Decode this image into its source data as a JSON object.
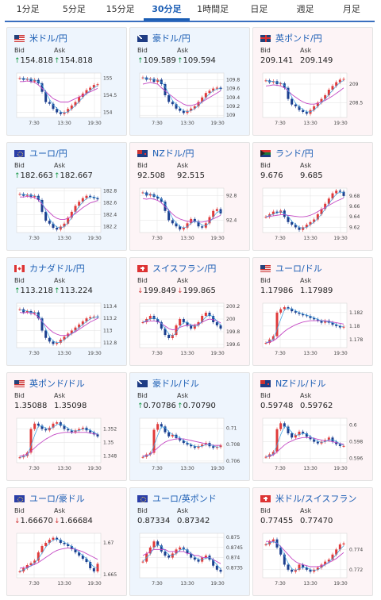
{
  "tabs": [
    "1分足",
    "5分足",
    "15分足",
    "30分足",
    "1時間足",
    "日足",
    "週足",
    "月足"
  ],
  "active_tab": 3,
  "labels": {
    "bid": "Bid",
    "ask": "Ask"
  },
  "time_labels": [
    "7:30",
    "13:30",
    "19:30"
  ],
  "colors": {
    "up": "#e03a3a",
    "down": "#1c3f8f",
    "ma": "#c448c4",
    "ma_light": "#d99ee0",
    "grid": "#e2e2e2",
    "bg_blue": "#eef5fd",
    "bg_pink": "#fdf4f6"
  },
  "cards": [
    {
      "pair": "米ドル/円",
      "flag": "us-flag-icon",
      "bid": "154.818",
      "ask": "154.818",
      "bid_dir": "up",
      "ask_dir": "up",
      "bg": "blue",
      "y_ticks": [
        "155",
        "154.5",
        "154"
      ],
      "series": [
        155.0,
        154.95,
        154.98,
        154.9,
        154.95,
        154.85,
        154.6,
        154.3,
        154.25,
        154.1,
        154.0,
        153.95,
        154.0,
        154.1,
        154.2,
        154.3,
        154.45,
        154.55,
        154.65,
        154.72,
        154.8,
        154.82
      ],
      "ma": [
        154.9,
        154.9,
        154.92,
        154.9,
        154.88,
        154.8,
        154.7,
        154.6,
        154.5,
        154.4,
        154.35,
        154.3,
        154.3,
        154.3,
        154.35,
        154.4,
        154.45,
        154.5,
        154.55,
        154.6,
        154.65,
        154.7
      ],
      "ylim": [
        153.85,
        155.15
      ]
    },
    {
      "pair": "豪ドル/円",
      "flag": "au-flag-icon",
      "bid": "109.589",
      "ask": "109.594",
      "bid_dir": "up",
      "ask_dir": "up",
      "bg": "blue",
      "y_ticks": [
        "109.8",
        "109.6",
        "109.4",
        "109.2",
        "109"
      ],
      "series": [
        109.85,
        109.8,
        109.82,
        109.75,
        109.8,
        109.7,
        109.45,
        109.3,
        109.25,
        109.15,
        109.1,
        109.05,
        109.1,
        109.15,
        109.2,
        109.3,
        109.4,
        109.5,
        109.55,
        109.6,
        109.62,
        109.59
      ],
      "ma": [
        109.7,
        109.72,
        109.74,
        109.72,
        109.7,
        109.62,
        109.55,
        109.48,
        109.42,
        109.35,
        109.3,
        109.25,
        109.22,
        109.22,
        109.24,
        109.27,
        109.3,
        109.35,
        109.4,
        109.45,
        109.5,
        109.55
      ],
      "ylim": [
        108.95,
        109.95
      ]
    },
    {
      "pair": "英ポンド/円",
      "flag": "gb-flag-icon",
      "bid": "209.141",
      "ask": "209.149",
      "bid_dir": "none",
      "ask_dir": "none",
      "bg": "pink",
      "y_ticks": [
        "209",
        "208.5"
      ],
      "series": [
        209.1,
        209.05,
        209.08,
        209.0,
        209.02,
        208.9,
        208.6,
        208.45,
        208.4,
        208.3,
        208.25,
        208.2,
        208.3,
        208.4,
        208.5,
        208.6,
        208.7,
        208.85,
        208.95,
        209.05,
        209.12,
        209.14
      ],
      "ma": [
        208.95,
        208.96,
        208.98,
        208.97,
        208.95,
        208.9,
        208.82,
        208.72,
        208.65,
        208.58,
        208.52,
        208.48,
        208.46,
        208.46,
        208.48,
        208.52,
        208.56,
        208.62,
        208.68,
        208.75,
        208.82,
        208.9
      ],
      "ylim": [
        208.1,
        209.3
      ]
    },
    {
      "pair": "ユーロ/円",
      "flag": "eu-flag-icon",
      "bid": "182.663",
      "ask": "182.667",
      "bid_dir": "up",
      "ask_dir": "up",
      "bg": "blue",
      "y_ticks": [
        "182.8",
        "182.6",
        "182.4",
        "182.2"
      ],
      "series": [
        182.75,
        182.72,
        182.74,
        182.7,
        182.72,
        182.65,
        182.45,
        182.3,
        182.25,
        182.18,
        182.15,
        182.2,
        182.25,
        182.35,
        182.45,
        182.55,
        182.62,
        182.68,
        182.72,
        182.7,
        182.68,
        182.66
      ],
      "ma": [
        182.7,
        182.7,
        182.71,
        182.7,
        182.69,
        182.65,
        182.58,
        182.5,
        182.44,
        182.38,
        182.34,
        182.32,
        182.32,
        182.34,
        182.38,
        182.42,
        182.47,
        182.52,
        182.56,
        182.6,
        182.62,
        182.64
      ],
      "ylim": [
        182.1,
        182.85
      ]
    },
    {
      "pair": "NZドル/円",
      "flag": "nz-flag-icon",
      "bid": "92.508",
      "ask": "92.515",
      "bid_dir": "none",
      "ask_dir": "none",
      "bg": "pink",
      "y_ticks": [
        "92.8",
        "92.4"
      ],
      "series": [
        92.85,
        92.8,
        92.82,
        92.78,
        92.75,
        92.7,
        92.55,
        92.4,
        92.35,
        92.3,
        92.25,
        92.28,
        92.35,
        92.42,
        92.38,
        92.3,
        92.28,
        92.35,
        92.45,
        92.55,
        92.58,
        92.51
      ],
      "ma": [
        92.75,
        92.74,
        92.75,
        92.74,
        92.72,
        92.68,
        92.62,
        92.56,
        92.5,
        92.45,
        92.42,
        92.4,
        92.38,
        92.38,
        92.38,
        92.37,
        92.37,
        92.38,
        92.4,
        92.42,
        92.45,
        92.48
      ],
      "ylim": [
        92.2,
        92.92
      ]
    },
    {
      "pair": "ランド/円",
      "flag": "za-flag-icon",
      "bid": "9.676",
      "ask": "9.685",
      "bid_dir": "none",
      "ask_dir": "none",
      "bg": "pink",
      "y_ticks": [
        "9.68",
        "9.66",
        "9.64",
        "9.62"
      ],
      "series": [
        9.64,
        9.645,
        9.65,
        9.648,
        9.652,
        9.64,
        9.63,
        9.625,
        9.62,
        9.615,
        9.62,
        9.625,
        9.63,
        9.635,
        9.645,
        9.655,
        9.665,
        9.675,
        9.685,
        9.69,
        9.688,
        9.68
      ],
      "ma": [
        9.64,
        9.641,
        9.642,
        9.643,
        9.644,
        9.644,
        9.643,
        9.642,
        9.641,
        9.64,
        9.64,
        9.641,
        9.643,
        9.646,
        9.65,
        9.654,
        9.658,
        9.662,
        9.666,
        9.67,
        9.673,
        9.676
      ],
      "ylim": [
        9.61,
        9.695
      ]
    },
    {
      "pair": "カナダドル/円",
      "flag": "ca-flag-icon",
      "bid": "113.218",
      "ask": "113.224",
      "bid_dir": "up",
      "ask_dir": "up",
      "bg": "blue",
      "y_ticks": [
        "113.4",
        "113.2",
        "113",
        "112.8"
      ],
      "series": [
        113.35,
        113.3,
        113.32,
        113.28,
        113.3,
        113.2,
        113.0,
        112.88,
        112.82,
        112.78,
        112.8,
        112.85,
        112.9,
        112.95,
        113.0,
        113.05,
        113.1,
        113.15,
        113.2,
        113.22,
        113.23,
        113.22
      ],
      "ma": [
        113.3,
        113.29,
        113.3,
        113.29,
        113.27,
        113.22,
        113.15,
        113.08,
        113.02,
        112.97,
        112.94,
        112.92,
        112.92,
        112.93,
        112.95,
        112.98,
        113.02,
        113.06,
        113.1,
        113.14,
        113.17,
        113.2
      ],
      "ylim": [
        112.72,
        113.45
      ]
    },
    {
      "pair": "スイスフラン/円",
      "flag": "ch-flag-icon",
      "bid": "199.849",
      "ask": "199.865",
      "bid_dir": "down",
      "ask_dir": "down",
      "bg": "pink",
      "y_ticks": [
        "200.2",
        "200",
        "199.8",
        "199.6"
      ],
      "series": [
        199.95,
        200.0,
        200.05,
        200.0,
        199.95,
        199.85,
        199.75,
        199.7,
        199.75,
        199.9,
        200.0,
        199.95,
        199.9,
        199.85,
        199.9,
        199.95,
        200.05,
        200.1,
        200.05,
        199.95,
        199.9,
        199.85
      ],
      "ma": [
        199.95,
        199.96,
        199.97,
        199.97,
        199.96,
        199.93,
        199.89,
        199.85,
        199.83,
        199.84,
        199.87,
        199.89,
        199.9,
        199.9,
        199.91,
        199.92,
        199.95,
        199.98,
        200.0,
        199.99,
        199.97,
        199.94
      ],
      "ylim": [
        199.55,
        200.25
      ]
    },
    {
      "pair": "ユーロ/ドル",
      "flag": "us-flag-icon",
      "bid": "1.17986",
      "ask": "1.17989",
      "bid_dir": "none",
      "ask_dir": "none",
      "bg": "pink",
      "y_ticks": [
        "1.182",
        "1.18",
        "1.178"
      ],
      "series": [
        1.1775,
        1.178,
        1.1785,
        1.182,
        1.1825,
        1.1828,
        1.1826,
        1.1822,
        1.182,
        1.1818,
        1.1816,
        1.1815,
        1.1812,
        1.181,
        1.1808,
        1.1805,
        1.1808,
        1.1805,
        1.1802,
        1.18,
        1.1798,
        1.1799
      ],
      "ma": [
        1.1775,
        1.1776,
        1.1778,
        1.1782,
        1.1787,
        1.1792,
        1.1796,
        1.1799,
        1.1802,
        1.1804,
        1.1806,
        1.1807,
        1.1808,
        1.1808,
        1.1808,
        1.1808,
        1.1808,
        1.1807,
        1.1806,
        1.1805,
        1.1804,
        1.1803
      ],
      "ylim": [
        1.1768,
        1.1834
      ]
    },
    {
      "pair": "英ポンド/ドル",
      "flag": "us-flag-icon",
      "bid": "1.35088",
      "ask": "1.35098",
      "bid_dir": "none",
      "ask_dir": "none",
      "bg": "pink",
      "y_ticks": [
        "1.352",
        "1.35",
        "1.348"
      ],
      "series": [
        1.3478,
        1.348,
        1.3485,
        1.352,
        1.3528,
        1.3525,
        1.352,
        1.3518,
        1.3522,
        1.3528,
        1.353,
        1.3525,
        1.352,
        1.3518,
        1.3515,
        1.3518,
        1.352,
        1.3522,
        1.3518,
        1.3515,
        1.3512,
        1.3509
      ],
      "ma": [
        1.348,
        1.3481,
        1.3483,
        1.3487,
        1.3492,
        1.3497,
        1.3501,
        1.3505,
        1.3508,
        1.3511,
        1.3513,
        1.3514,
        1.3515,
        1.3515,
        1.3515,
        1.3515,
        1.3515,
        1.3515,
        1.3515,
        1.3514,
        1.3513,
        1.3512
      ],
      "ylim": [
        1.347,
        1.3536
      ]
    },
    {
      "pair": "豪ドル/ドル",
      "flag": "au-flag-icon",
      "bid": "0.70786",
      "ask": "0.70790",
      "bid_dir": "up",
      "ask_dir": "up",
      "bg": "blue",
      "y_ticks": [
        "0.71",
        "0.708",
        "0.706"
      ],
      "series": [
        0.7065,
        0.7068,
        0.707,
        0.7098,
        0.7105,
        0.7102,
        0.7095,
        0.709,
        0.7092,
        0.7088,
        0.7085,
        0.7082,
        0.708,
        0.7078,
        0.7076,
        0.7078,
        0.708,
        0.7082,
        0.7078,
        0.7076,
        0.7077,
        0.7079
      ],
      "ma": [
        0.7066,
        0.7067,
        0.7068,
        0.7072,
        0.7076,
        0.708,
        0.7083,
        0.7085,
        0.7086,
        0.7087,
        0.7087,
        0.7087,
        0.7086,
        0.7085,
        0.7084,
        0.7083,
        0.7082,
        0.7081,
        0.708,
        0.7079,
        0.7079,
        0.7079
      ],
      "ylim": [
        0.7058,
        0.7112
      ]
    },
    {
      "pair": "NZドル/ドル",
      "flag": "nz-flag-icon",
      "bid": "0.59748",
      "ask": "0.59762",
      "bid_dir": "none",
      "ask_dir": "none",
      "bg": "pink",
      "y_ticks": [
        "0.6",
        "0.598",
        "0.596"
      ],
      "series": [
        0.5962,
        0.5965,
        0.5968,
        0.5995,
        0.6002,
        0.5998,
        0.599,
        0.5985,
        0.5988,
        0.5992,
        0.599,
        0.5986,
        0.5983,
        0.598,
        0.5978,
        0.598,
        0.5982,
        0.5985,
        0.598,
        0.5977,
        0.5975,
        0.5975
      ],
      "ma": [
        0.5962,
        0.5963,
        0.5964,
        0.5968,
        0.5972,
        0.5976,
        0.5979,
        0.5981,
        0.5983,
        0.5984,
        0.5985,
        0.5985,
        0.5985,
        0.5984,
        0.5983,
        0.5982,
        0.5981,
        0.5981,
        0.598,
        0.5979,
        0.5978,
        0.5977
      ],
      "ylim": [
        0.5955,
        0.6008
      ]
    },
    {
      "pair": "ユーロ/豪ドル",
      "flag": "eu-flag-icon",
      "bid": "1.66670",
      "ask": "1.66684",
      "bid_dir": "down",
      "ask_dir": "down",
      "bg": "pink",
      "y_ticks": [
        "1.67",
        "1.665"
      ],
      "series": [
        1.6655,
        1.666,
        1.6665,
        1.6668,
        1.6672,
        1.6685,
        1.6695,
        1.67,
        1.6705,
        1.6708,
        1.6705,
        1.67,
        1.6698,
        1.6695,
        1.669,
        1.6685,
        1.668,
        1.6675,
        1.667,
        1.666,
        1.6655,
        1.6667
      ],
      "ma": [
        1.666,
        1.6661,
        1.6662,
        1.6664,
        1.6666,
        1.6669,
        1.6673,
        1.6677,
        1.6681,
        1.6685,
        1.6688,
        1.669,
        1.6691,
        1.6692,
        1.6691,
        1.669,
        1.6688,
        1.6686,
        1.6683,
        1.668,
        1.6677,
        1.6674
      ],
      "ylim": [
        1.6645,
        1.6715
      ]
    },
    {
      "pair": "ユーロ/英ポンド",
      "flag": "eu-flag-icon",
      "bid": "0.87334",
      "ask": "0.87342",
      "bid_dir": "none",
      "ask_dir": "none",
      "bg": "blue",
      "y_ticks": [
        "0.875",
        "0.8745",
        "0.874",
        "0.8735"
      ],
      "series": [
        0.8738,
        0.8742,
        0.8745,
        0.8748,
        0.8746,
        0.8743,
        0.8741,
        0.874,
        0.8742,
        0.8744,
        0.8745,
        0.8744,
        0.8742,
        0.874,
        0.8739,
        0.8738,
        0.874,
        0.8741,
        0.8739,
        0.8736,
        0.8734,
        0.8733
      ],
      "ma": [
        0.8741,
        0.8742,
        0.8743,
        0.8744,
        0.8744,
        0.8744,
        0.8744,
        0.8743,
        0.8743,
        0.8743,
        0.8743,
        0.8743,
        0.8742,
        0.8742,
        0.8741,
        0.8741,
        0.874,
        0.874,
        0.874,
        0.8739,
        0.8738,
        0.8737
      ],
      "ylim": [
        0.873,
        0.8752
      ]
    },
    {
      "pair": "米ドル/スイスフラン",
      "flag": "ch-flag-icon",
      "bid": "0.77455",
      "ask": "0.77470",
      "bid_dir": "none",
      "ask_dir": "none",
      "bg": "pink",
      "y_ticks": [
        "0.774",
        "0.772"
      ],
      "series": [
        0.7745,
        0.7748,
        0.775,
        0.7742,
        0.7735,
        0.7725,
        0.772,
        0.7718,
        0.772,
        0.7725,
        0.7722,
        0.772,
        0.7718,
        0.772,
        0.7722,
        0.7725,
        0.7728,
        0.773,
        0.7735,
        0.774,
        0.7745,
        0.7746
      ],
      "ma": [
        0.7748,
        0.7748,
        0.7748,
        0.7746,
        0.7743,
        0.7739,
        0.7735,
        0.7731,
        0.7728,
        0.7726,
        0.7725,
        0.7724,
        0.7723,
        0.7723,
        0.7723,
        0.7724,
        0.7725,
        0.7727,
        0.7729,
        0.7731,
        0.7734,
        0.7737
      ],
      "ylim": [
        0.7712,
        0.7756
      ]
    }
  ]
}
